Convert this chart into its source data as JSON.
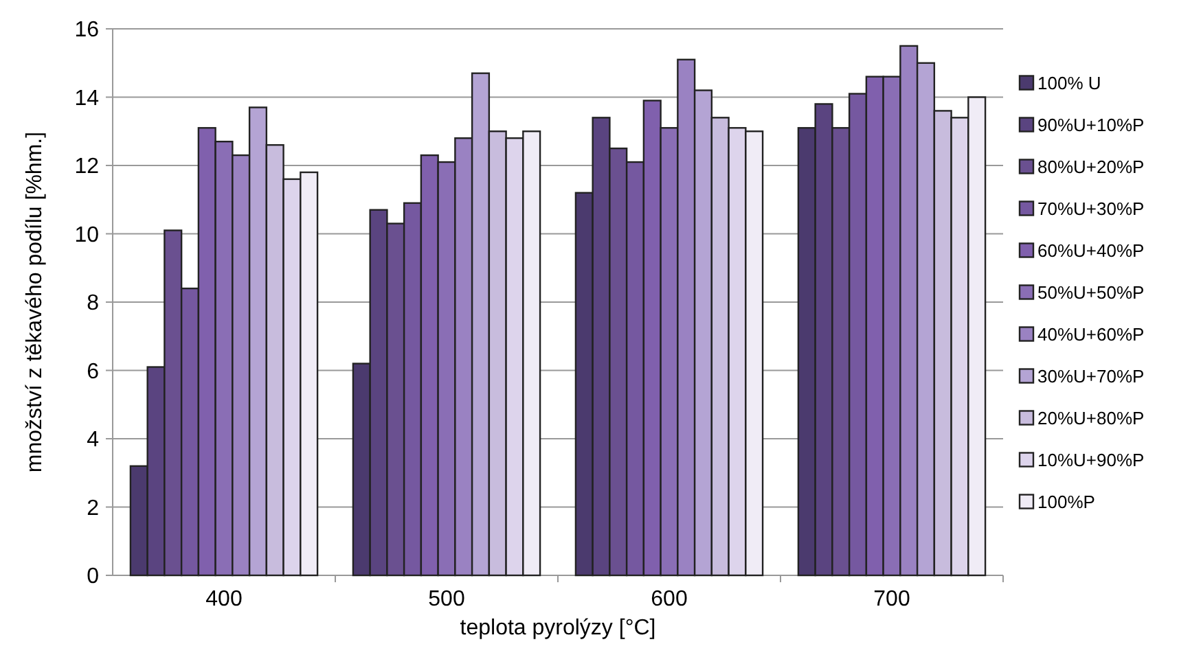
{
  "chart_data": {
    "type": "bar",
    "xlabel": "teplota pyrolýzy [°C]",
    "ylabel": "množství z těkavého podílu [%hm.]",
    "categories": [
      "400",
      "500",
      "600",
      "700"
    ],
    "series": [
      {
        "name": "100% U",
        "color": "#4b3a6e",
        "values": [
          3.2,
          6.2,
          11.2,
          13.1
        ]
      },
      {
        "name": "90%U+10%P",
        "color": "#5a4480",
        "values": [
          6.1,
          10.7,
          13.4,
          13.8
        ]
      },
      {
        "name": "80%U+20%P",
        "color": "#6a5090",
        "values": [
          10.1,
          10.3,
          12.5,
          13.1
        ]
      },
      {
        "name": "70%U+30%P",
        "color": "#7558a0",
        "values": [
          8.4,
          10.9,
          12.1,
          14.1
        ]
      },
      {
        "name": "60%U+40%P",
        "color": "#8060ad",
        "values": [
          13.1,
          12.3,
          13.9,
          14.6
        ]
      },
      {
        "name": "50%U+50%P",
        "color": "#8a6eb5",
        "values": [
          12.7,
          12.1,
          13.1,
          14.6
        ]
      },
      {
        "name": "40%U+60%P",
        "color": "#9a82c2",
        "values": [
          12.3,
          12.8,
          15.1,
          15.5
        ]
      },
      {
        "name": "30%U+70%P",
        "color": "#b4a4d4",
        "values": [
          13.7,
          14.7,
          14.2,
          15.0
        ]
      },
      {
        "name": "20%U+80%P",
        "color": "#c8bcdd",
        "values": [
          12.6,
          13.0,
          13.4,
          13.6
        ]
      },
      {
        "name": "10%U+90%P",
        "color": "#ddd4ec",
        "values": [
          11.6,
          12.8,
          13.1,
          13.4
        ]
      },
      {
        "name": "100%P",
        "color": "#f0ecf6",
        "values": [
          11.8,
          13.0,
          13.0,
          14.0
        ]
      }
    ],
    "ylim": [
      0,
      16
    ],
    "yticks": [
      0,
      2,
      4,
      6,
      8,
      10,
      12,
      14,
      16
    ],
    "grid": "y",
    "legend": "right"
  }
}
